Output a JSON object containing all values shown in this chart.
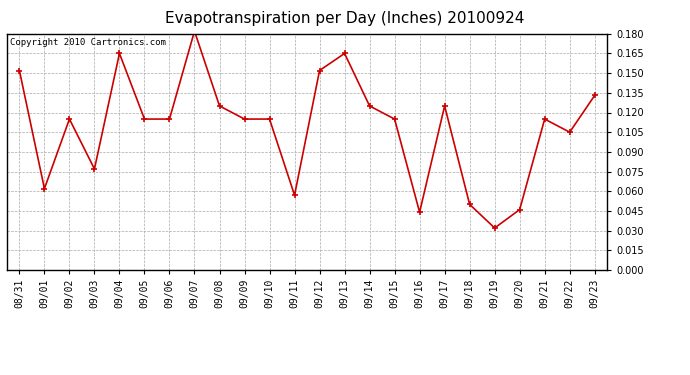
{
  "title": "Evapotranspiration per Day (Inches) 20100924",
  "copyright_text": "Copyright 2010 Cartronics.com",
  "dates": [
    "08/31",
    "09/01",
    "09/02",
    "09/03",
    "09/04",
    "09/05",
    "09/06",
    "09/07",
    "09/08",
    "09/09",
    "09/10",
    "09/11",
    "09/12",
    "09/13",
    "09/14",
    "09/15",
    "09/16",
    "09/17",
    "09/18",
    "09/19",
    "09/20",
    "09/21",
    "09/22",
    "09/23"
  ],
  "values": [
    0.152,
    0.062,
    0.115,
    0.077,
    0.165,
    0.115,
    0.115,
    0.182,
    0.125,
    0.115,
    0.115,
    0.057,
    0.152,
    0.165,
    0.125,
    0.115,
    0.044,
    0.125,
    0.05,
    0.032,
    0.046,
    0.115,
    0.105,
    0.133
  ],
  "line_color": "#cc0000",
  "marker": "+",
  "ylim": [
    0.0,
    0.18
  ],
  "ytick_step": 0.015,
  "grid_color": "#aaaaaa",
  "grid_linestyle": "--",
  "background_color": "#ffffff",
  "title_fontsize": 11,
  "copyright_fontsize": 6.5,
  "tick_fontsize": 7,
  "border_color": "#000000"
}
